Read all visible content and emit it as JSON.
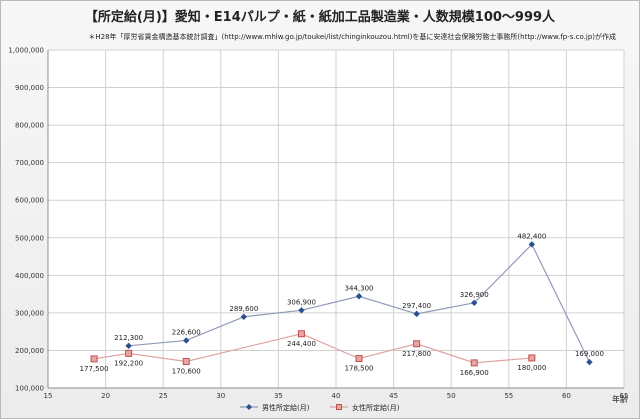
{
  "chart_data": {
    "type": "line",
    "title": "【所定給(月)】愛知・E14パルプ・紙・紙加工品製造業・人数規模100～999人",
    "subtitle": "＊H28年「厚労省賃金構造基本統計調査」(http://www.mhlw.go.jp/toukei/list/chinginkouzou.html)を基に安達社会保険労務士事務所(http://www.fp-s.co.jp)が作成",
    "xlabel": "年齢",
    "ylabel": "",
    "xlim": [
      15,
      65
    ],
    "ylim": [
      100000,
      1000000
    ],
    "x_ticks": [
      "15",
      "20",
      "25",
      "30",
      "35",
      "40",
      "45",
      "50",
      "55",
      "60",
      "65"
    ],
    "y_ticks": [
      "100,000",
      "200,000",
      "300,000",
      "400,000",
      "500,000",
      "600,000",
      "700,000",
      "800,000",
      "900,000",
      "1,000,000"
    ],
    "grid": true,
    "legend_position": "bottom",
    "series": [
      {
        "name": "男性所定給(月)",
        "color": "#2e4f8f",
        "marker": "diamond",
        "x": [
          22,
          27,
          32,
          37,
          42,
          47,
          52,
          57,
          62
        ],
        "values": [
          212300,
          226600,
          289600,
          306900,
          344300,
          297400,
          326900,
          482400,
          169000
        ],
        "labels": [
          "212,300",
          "226,600",
          "289,600",
          "306,900",
          "344,300",
          "297,400",
          "326,900",
          "482,400",
          "169,000"
        ]
      },
      {
        "name": "女性所定給(月)",
        "color": "#c0504d",
        "marker": "square",
        "x": [
          19,
          22,
          27,
          37,
          42,
          47,
          52,
          57
        ],
        "values": [
          177500,
          192200,
          170600,
          244400,
          178500,
          217800,
          166900,
          180000
        ],
        "labels": [
          "177,500",
          "192,200",
          "170,600",
          "244,400",
          "178,500",
          "217,800",
          "166,900",
          "180,000"
        ]
      }
    ]
  }
}
